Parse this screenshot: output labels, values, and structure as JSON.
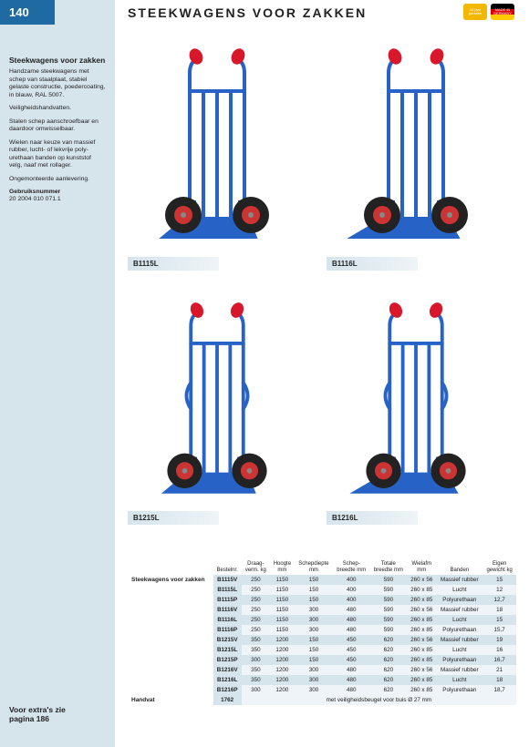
{
  "page_number": "140",
  "header": {
    "title": "STEEKWAGENS VOOR ZAKKEN"
  },
  "badges": {
    "warranty": "10 jaar garantie",
    "made_in": "MADE IN GERMANY"
  },
  "sidebar": {
    "title": "Steekwagens voor zakken",
    "p1": "Handzame steekwagens met schep van staalplaat, stabiel gelaste constructie, poedercoating, in blauw, RAL 5007.",
    "p2": "Veiligheidshandvatten.",
    "p3": "Stalen schep aanschroefbaar en daardoor omwisselbaar.",
    "p4": "Wielen naar keuze van massief rubber, lucht- of lekvrije poly­urethaan banden op kunststof velg, naaf met rollager.",
    "p5": "Ongemonteerde aanlevering.",
    "gn_label": "Gebruiksnummer",
    "gn_value": "20 2004 010 071.1"
  },
  "products": [
    {
      "label": "B1115L"
    },
    {
      "label": "B1116L"
    },
    {
      "label": "B1215L"
    },
    {
      "label": "B1216L"
    }
  ],
  "table": {
    "row_title": "Steekwagens voor zakken",
    "handvat_label": "Handvat",
    "handvat_code": "1762",
    "handvat_text": "met veiligheidsbeugel voor buis Ø 27 mm",
    "cols": [
      "Bestelnr.",
      "Draag-\nverm. kg",
      "Hoogte\nmm",
      "Schepdiepte\nmm",
      "Schep-\nbreedte mm",
      "Totale\nbreedte mm",
      "Wielafm\nmm",
      "Banden",
      "Eigen\ngewicht kg"
    ],
    "rows": [
      [
        "B1115V",
        "250",
        "1150",
        "150",
        "400",
        "590",
        "260 x 56",
        "Massief rubber",
        "15"
      ],
      [
        "B1115L",
        "250",
        "1150",
        "150",
        "400",
        "590",
        "260 x 85",
        "Lucht",
        "12"
      ],
      [
        "B1115P",
        "250",
        "1150",
        "150",
        "400",
        "590",
        "260 x 85",
        "Polyurethaan",
        "12,7"
      ],
      [
        "B1116V",
        "250",
        "1150",
        "300",
        "480",
        "590",
        "260 x 56",
        "Massief rubber",
        "18"
      ],
      [
        "B1116L",
        "250",
        "1150",
        "300",
        "480",
        "590",
        "260 x 85",
        "Lucht",
        "15"
      ],
      [
        "B1116P",
        "250",
        "1150",
        "300",
        "480",
        "590",
        "260 x 85",
        "Polyurethaan",
        "15,7"
      ],
      [
        "B1215V",
        "350",
        "1200",
        "150",
        "450",
        "620",
        "260 x 56",
        "Massief rubber",
        "19"
      ],
      [
        "B1215L",
        "350",
        "1200",
        "150",
        "450",
        "620",
        "260 x 85",
        "Lucht",
        "16"
      ],
      [
        "B1215P",
        "300",
        "1200",
        "150",
        "450",
        "620",
        "260 x 85",
        "Polyurethaan",
        "16,7"
      ],
      [
        "B1216V",
        "350",
        "1200",
        "300",
        "480",
        "620",
        "260 x 56",
        "Massief rubber",
        "21"
      ],
      [
        "B1216L",
        "350",
        "1200",
        "300",
        "480",
        "620",
        "260 x 85",
        "Lucht",
        "18"
      ],
      [
        "B1216P",
        "300",
        "1200",
        "300",
        "480",
        "620",
        "260 x 85",
        "Polyurethaan",
        "18,7"
      ]
    ]
  },
  "extras": {
    "line1": "Voor extra's zie",
    "line2": "pagina 186"
  },
  "colors": {
    "accent_blue": "#1f6aa3",
    "bg_light": "#d6e4ec",
    "frame_blue": "#2763c7",
    "handle_red": "#d9172a",
    "wheel_dark": "#222"
  }
}
